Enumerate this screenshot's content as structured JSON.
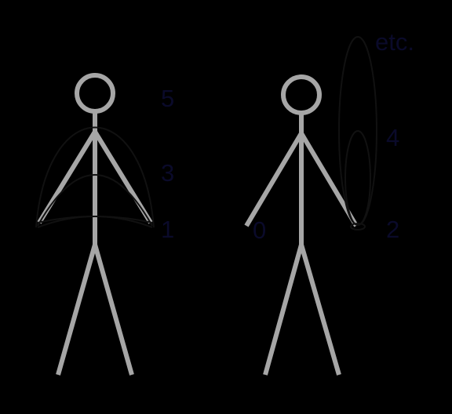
{
  "labels": {
    "one": "1",
    "three": "3",
    "five": "5",
    "zero": "0",
    "two": "2",
    "four": "4",
    "etc": "etc."
  },
  "colors": {
    "background": "#000000",
    "figure": "#a6a6a6",
    "curves": "#111111",
    "text": "#0a0a2a"
  }
}
